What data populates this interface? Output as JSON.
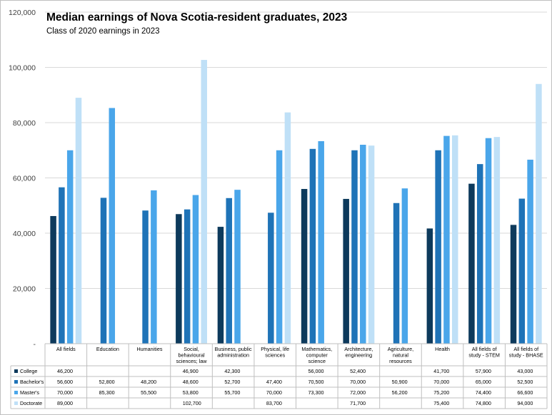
{
  "chart_data": {
    "type": "bar",
    "title": "Median earnings of Nova Scotia-resident graduates, 2023",
    "subtitle": "Class of 2020 earnings in 2023",
    "xlabel": "",
    "ylabel": "",
    "ylim": [
      0,
      120000
    ],
    "yticks": [
      {
        "value": 0,
        "label": "-"
      },
      {
        "value": 20000,
        "label": "20,000"
      },
      {
        "value": 40000,
        "label": "40,000"
      },
      {
        "value": 60000,
        "label": "60,000"
      },
      {
        "value": 80000,
        "label": "80,000"
      },
      {
        "value": 100000,
        "label": "100,000"
      },
      {
        "value": 120000,
        "label": "120,000"
      }
    ],
    "grid": true,
    "categories": [
      [
        "All fields"
      ],
      [
        "Education"
      ],
      [
        "Humanities"
      ],
      [
        "Social,",
        "behavioural",
        "sciences; law"
      ],
      [
        "Business, public",
        "administration"
      ],
      [
        "Physical, life",
        "sciences"
      ],
      [
        "Mathematics,",
        "computer",
        "science"
      ],
      [
        "Architecture,",
        "engineering"
      ],
      [
        "Agriculture,",
        "natural",
        "resources"
      ],
      [
        "Health"
      ],
      [
        "All fields of",
        "study - STEM"
      ],
      [
        "All fields of",
        "study - BHASE"
      ]
    ],
    "series": [
      {
        "name": "College",
        "color": "#0d3a5c",
        "values": [
          46200,
          null,
          null,
          46900,
          42300,
          null,
          56000,
          52400,
          null,
          41700,
          57900,
          43000
        ],
        "labels": [
          "46,200",
          "",
          "",
          "46,900",
          "42,300",
          "",
          "56,000",
          "52,400",
          "",
          "41,700",
          "57,900",
          "43,000"
        ]
      },
      {
        "name": "Bachelor's",
        "color": "#1f73b7",
        "values": [
          56600,
          52800,
          48200,
          48600,
          52700,
          47400,
          70500,
          70000,
          50900,
          70000,
          65000,
          52500
        ],
        "labels": [
          "56,600",
          "52,800",
          "48,200",
          "48,600",
          "52,700",
          "47,400",
          "70,500",
          "70,000",
          "50,900",
          "70,000",
          "65,000",
          "52,500"
        ]
      },
      {
        "name": "Master's",
        "color": "#4aa6ea",
        "values": [
          70000,
          85300,
          55500,
          53800,
          55700,
          70000,
          73300,
          72000,
          56200,
          75200,
          74400,
          66600
        ],
        "labels": [
          "70,000",
          "85,300",
          "55,500",
          "53,800",
          "55,700",
          "70,000",
          "73,300",
          "72,000",
          "56,200",
          "75,200",
          "74,400",
          "66,600"
        ]
      },
      {
        "name": "Doctorate",
        "color": "#bfe0f7",
        "values": [
          89000,
          null,
          null,
          102700,
          null,
          83700,
          null,
          71700,
          null,
          75400,
          74800,
          94000
        ],
        "labels": [
          "89,000",
          "",
          "",
          "102,700",
          "",
          "83,700",
          "",
          "71,700",
          "",
          "75,400",
          "74,800",
          "94,000"
        ]
      }
    ]
  }
}
